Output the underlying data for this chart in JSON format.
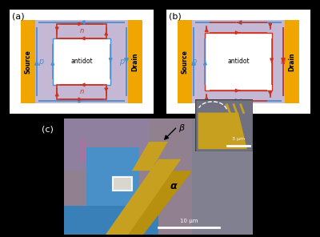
{
  "bg_color": "#000000",
  "white_bg": "#ffffff",
  "lavender": "#c5b8d5",
  "orange": "#f0a500",
  "blue_arrow": "#4a8fd0",
  "red_arrow": "#cc3322",
  "title_a": "(a)",
  "title_b": "(b)",
  "title_c": "(c)",
  "source_label": "Source",
  "drain_label": "Drain",
  "antidot_label": "antidot",
  "p_color": "#4a8fd0",
  "n_color": "#cc3322",
  "alpha_label": "α",
  "beta_label": "β",
  "scale1": "3 μm",
  "scale2": "10 μm",
  "img_gray": "#8a8090",
  "img_lavender": "#c8a8c0",
  "img_blue": "#3a80b0",
  "img_gold": "#c8a020",
  "img_darkgray": "#505050"
}
